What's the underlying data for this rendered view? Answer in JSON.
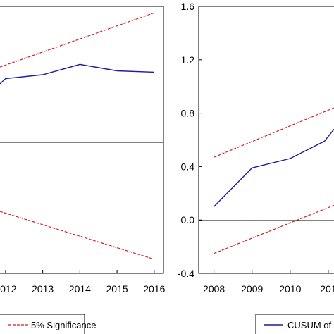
{
  "chart_data": [
    {
      "type": "line",
      "title": "",
      "xlabel": "",
      "ylabel": "",
      "x_ticks": [
        "2012",
        "2013",
        "2014",
        "2015",
        "2016"
      ],
      "xlim": [
        2011.85,
        2016.25
      ],
      "ylim": [
        -0.47,
        1.6
      ],
      "grid": false,
      "zero_line": 0.5,
      "series": [
        {
          "name": "",
          "style": "solid",
          "color": "#1c1c9c",
          "x": [
            2011.85,
            2012.0,
            2013.0,
            2014.0,
            2015.0,
            2016.0
          ],
          "y": [
            1.0,
            1.04,
            1.07,
            1.15,
            1.1,
            1.09
          ]
        },
        {
          "name": "5% Significance",
          "style": "dashed",
          "color": "#cc2222",
          "x": [
            2011.85,
            2016.0
          ],
          "y": [
            1.13,
            1.55
          ]
        },
        {
          "name": "5% Significance",
          "style": "dashed",
          "color": "#cc2222",
          "x": [
            2011.85,
            2016.0
          ],
          "y": [
            0.01,
            -0.36
          ]
        }
      ],
      "legend": {
        "position": "bottom",
        "entries": [
          {
            "label": "5% Significance",
            "style": "dashed",
            "color": "#cc2222"
          }
        ]
      }
    },
    {
      "type": "line",
      "title": "",
      "xlabel": "",
      "ylabel": "",
      "x_ticks": [
        "2008",
        "2009",
        "2010",
        "201"
      ],
      "y_ticks": [
        "-0.4",
        "0.0",
        "0.4",
        "0.8",
        "1.2",
        "1.6"
      ],
      "xlim": [
        2007.6,
        2011.15
      ],
      "ylim": [
        -0.4,
        1.6
      ],
      "grid": false,
      "zero_line": 0.0,
      "series": [
        {
          "name": "CUSUM of",
          "style": "solid",
          "color": "#1c1c9c",
          "x": [
            2008.0,
            2009.0,
            2010.0,
            2010.9,
            2011.15
          ],
          "y": [
            0.1,
            0.39,
            0.46,
            0.59,
            0.68
          ]
        },
        {
          "name": "5% Significance",
          "style": "dashed",
          "color": "#cc2222",
          "x": [
            2008.0,
            2011.15
          ],
          "y": [
            0.47,
            0.84
          ]
        },
        {
          "name": "5% Significance",
          "style": "dashed",
          "color": "#cc2222",
          "x": [
            2008.0,
            2011.15
          ],
          "y": [
            -0.25,
            0.11
          ]
        }
      ],
      "legend": {
        "position": "bottom",
        "entries": [
          {
            "label": "CUSUM of",
            "style": "solid",
            "color": "#1c1c9c"
          }
        ]
      }
    }
  ]
}
